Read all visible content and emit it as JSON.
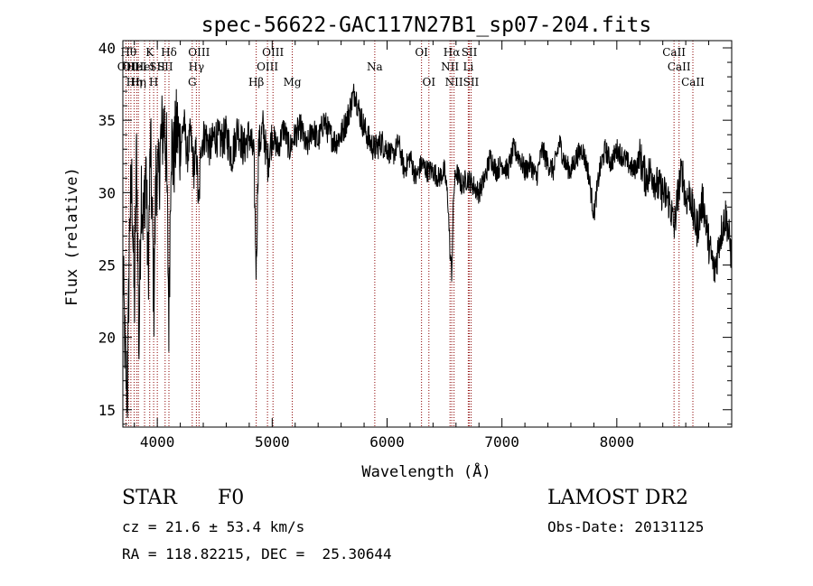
{
  "chart_data": {
    "type": "line",
    "title": "spec-56622-GAC117N27B1_sp07-204.fits",
    "xlabel": "Wavelength (Å)",
    "ylabel": "Flux (relative)",
    "xlim": [
      3700,
      9000
    ],
    "ylim": [
      13.8,
      40.5
    ],
    "xticks": [
      4000,
      5000,
      6000,
      7000,
      8000
    ],
    "yticks": [
      15,
      20,
      25,
      30,
      35,
      40
    ],
    "grid": false,
    "line_color": "#000000",
    "marker_line_color": "#8b0000",
    "series": [
      {
        "x": [
          3700,
          3720,
          3740,
          3760,
          3780,
          3800,
          3820,
          3840,
          3860,
          3880,
          3900,
          3920,
          3940,
          3960,
          3970,
          3990,
          4010,
          4030,
          4060,
          4080,
          4101,
          4120,
          4140,
          4170,
          4200,
          4230,
          4260,
          4290,
          4320,
          4340,
          4361,
          4380,
          4420,
          4460,
          4500,
          4550,
          4600,
          4650,
          4700,
          4750,
          4800,
          4840,
          4861,
          4880,
          4920,
          4960,
          5000,
          5050,
          5100,
          5150,
          5200,
          5250,
          5300,
          5350,
          5400,
          5450,
          5500,
          5550,
          5600,
          5650,
          5700,
          5720,
          5760,
          5800,
          5850,
          5890,
          5950,
          6000,
          6050,
          6100,
          6150,
          6200,
          6250,
          6300,
          6350,
          6400,
          6450,
          6500,
          6530,
          6550,
          6563,
          6580,
          6600,
          6650,
          6700,
          6750,
          6800,
          6850,
          6900,
          6950,
          7000,
          7050,
          7100,
          7150,
          7200,
          7250,
          7300,
          7350,
          7400,
          7450,
          7500,
          7550,
          7600,
          7650,
          7700,
          7750,
          7800,
          7850,
          7900,
          7950,
          8000,
          8050,
          8100,
          8150,
          8200,
          8250,
          8300,
          8350,
          8400,
          8450,
          8480,
          8498,
          8520,
          8542,
          8570,
          8600,
          8640,
          8662,
          8700,
          8750,
          8800,
          8850,
          8900,
          8950,
          9000
        ],
        "values": [
          25.0,
          18.5,
          16.0,
          28.5,
          30.5,
          22.0,
          33.0,
          19.0,
          31.0,
          27.5,
          32.5,
          24.0,
          33.5,
          26.5,
          22.5,
          32.0,
          30.5,
          33.5,
          35.0,
          32.5,
          21.0,
          34.0,
          32.0,
          34.5,
          33.0,
          35.0,
          32.5,
          34.0,
          31.5,
          33.0,
          28.5,
          33.5,
          34.0,
          33.0,
          34.0,
          33.5,
          34.0,
          32.5,
          34.5,
          33.0,
          34.0,
          32.5,
          24.5,
          33.0,
          34.5,
          32.0,
          34.0,
          33.0,
          34.5,
          33.0,
          34.0,
          34.5,
          33.0,
          34.5,
          33.5,
          35.0,
          34.0,
          33.5,
          34.0,
          35.0,
          36.5,
          37.0,
          35.5,
          34.5,
          33.5,
          33.0,
          33.5,
          33.0,
          32.5,
          33.5,
          31.5,
          32.5,
          31.0,
          32.0,
          31.5,
          31.5,
          31.0,
          31.5,
          29.5,
          25.5,
          24.5,
          30.0,
          31.5,
          30.5,
          31.0,
          30.5,
          30.0,
          31.0,
          32.5,
          31.5,
          32.0,
          31.5,
          33.0,
          32.5,
          31.5,
          32.0,
          31.0,
          33.0,
          32.0,
          31.5,
          33.5,
          32.0,
          31.5,
          32.5,
          33.0,
          31.5,
          28.5,
          31.5,
          33.0,
          32.0,
          33.0,
          32.5,
          32.0,
          31.5,
          32.5,
          31.0,
          31.5,
          30.5,
          30.0,
          29.5,
          28.5,
          27.5,
          29.0,
          30.5,
          31.5,
          29.5,
          30.0,
          28.5,
          27.5,
          29.5,
          26.5,
          24.5,
          27.0,
          28.5,
          25.5
        ]
      }
    ],
    "markers": [
      {
        "wavelength": 3727,
        "label": "OII",
        "row": 2
      },
      {
        "wavelength": 3750,
        "label": "Hθ",
        "row": 1
      },
      {
        "wavelength": 3770,
        "label": "OII",
        "row": 2
      },
      {
        "wavelength": 3798,
        "label": "Hη",
        "row": 3
      },
      {
        "wavelength": 3820,
        "label": "HeI",
        "row": 2
      },
      {
        "wavelength": 3835,
        "label": "Hη",
        "row": 3
      },
      {
        "wavelength": 3889,
        "label": "HeI",
        "row": 2
      },
      {
        "wavelength": 3934,
        "label": "K",
        "row": 1
      },
      {
        "wavelength": 3968,
        "label": "H",
        "row": 3
      },
      {
        "wavelength": 4000,
        "label": "SII",
        "row": 2
      },
      {
        "wavelength": 4068,
        "label": "SII",
        "row": 2
      },
      {
        "wavelength": 4101,
        "label": "Hδ",
        "row": 1
      },
      {
        "wavelength": 4304,
        "label": "G",
        "row": 3
      },
      {
        "wavelength": 4340,
        "label": "Hγ",
        "row": 2
      },
      {
        "wavelength": 4363,
        "label": "OIII",
        "row": 1
      },
      {
        "wavelength": 4861,
        "label": "Hβ",
        "row": 3
      },
      {
        "wavelength": 4959,
        "label": "OIII",
        "row": 2
      },
      {
        "wavelength": 5007,
        "label": "OIII",
        "row": 1
      },
      {
        "wavelength": 5175,
        "label": "Mg",
        "row": 3
      },
      {
        "wavelength": 5893,
        "label": "Na",
        "row": 2
      },
      {
        "wavelength": 6300,
        "label": "OI",
        "row": 1
      },
      {
        "wavelength": 6364,
        "label": "OI",
        "row": 3
      },
      {
        "wavelength": 6548,
        "label": "NII",
        "row": 2
      },
      {
        "wavelength": 6563,
        "label": "Hα",
        "row": 1
      },
      {
        "wavelength": 6583,
        "label": "NII",
        "row": 3
      },
      {
        "wavelength": 6707,
        "label": "Li",
        "row": 2
      },
      {
        "wavelength": 6716,
        "label": "SII",
        "row": 1
      },
      {
        "wavelength": 6731,
        "label": "SII",
        "row": 3
      },
      {
        "wavelength": 8498,
        "label": "CaII",
        "row": 1
      },
      {
        "wavelength": 8542,
        "label": "CaII",
        "row": 2
      },
      {
        "wavelength": 8662,
        "label": "CaII",
        "row": 3
      }
    ]
  },
  "info": {
    "object_class": "STAR",
    "subclass": "F0",
    "survey": "LAMOST DR2",
    "cz_text": "cz = 21.6 ± 53.4 km/s",
    "obs_date_text": "Obs-Date: 20131125",
    "coords_text": "RA = 118.82215, DEC =  25.30644"
  }
}
